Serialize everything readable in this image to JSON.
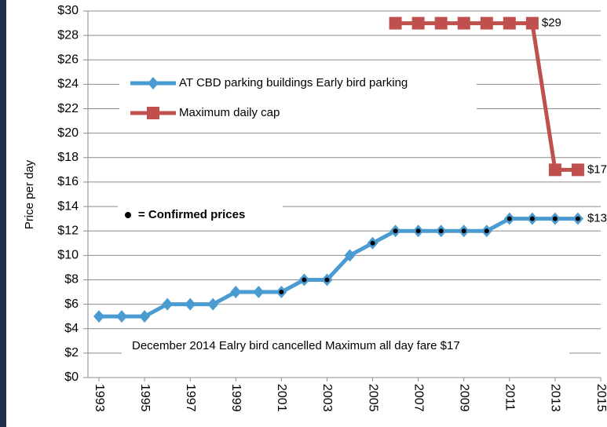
{
  "chart_data": {
    "type": "line",
    "y_label": "Price per day",
    "x": [
      1993,
      1994,
      1995,
      1996,
      1997,
      1998,
      1999,
      2000,
      2001,
      2002,
      2003,
      2004,
      2005,
      2006,
      2007,
      2008,
      2009,
      2010,
      2011,
      2012,
      2013,
      2014
    ],
    "series": [
      {
        "name": "AT CBD parking buildings Early bird parking",
        "color": "#4a9bd1",
        "marker": "diamond",
        "x": [
          1993,
          1994,
          1995,
          1996,
          1997,
          1998,
          1999,
          2000,
          2001,
          2002,
          2003,
          2004,
          2005,
          2006,
          2007,
          2008,
          2009,
          2010,
          2011,
          2012,
          2013,
          2014
        ],
        "values": [
          5,
          5,
          5,
          6,
          6,
          6,
          7,
          7,
          7,
          8,
          8,
          10,
          11,
          12,
          12,
          12,
          12,
          12,
          13,
          13,
          13,
          13
        ],
        "confirmed": [
          false,
          false,
          false,
          false,
          false,
          false,
          false,
          false,
          true,
          true,
          true,
          false,
          true,
          true,
          true,
          true,
          true,
          true,
          true,
          true,
          true,
          true
        ],
        "value_labels": [
          null,
          null,
          null,
          null,
          null,
          null,
          null,
          null,
          null,
          null,
          null,
          null,
          null,
          null,
          null,
          null,
          null,
          null,
          null,
          null,
          null,
          "$13"
        ]
      },
      {
        "name": "Maximum daily cap",
        "color": "#c0504d",
        "marker": "square",
        "x": [
          2006,
          2007,
          2008,
          2009,
          2010,
          2011,
          2012,
          2013,
          2014
        ],
        "values": [
          29,
          29,
          29,
          29,
          29,
          29,
          29,
          17,
          17
        ],
        "value_labels": [
          null,
          null,
          null,
          null,
          null,
          null,
          "$29",
          null,
          "$17"
        ]
      }
    ],
    "annotations": [
      "= Confirmed prices",
      "December 2014 Ealry bird cancelled Maximum all day fare $17"
    ],
    "xlim": [
      1993,
      2015
    ],
    "xticks": [
      1993,
      1995,
      1997,
      1999,
      2001,
      2003,
      2005,
      2007,
      2009,
      2011,
      2013,
      2015
    ],
    "ylim": [
      0,
      30
    ],
    "yticks": [
      {
        "value": 0,
        "label": "$0"
      },
      {
        "value": 2,
        "label": "$2"
      },
      {
        "value": 4,
        "label": "$4"
      },
      {
        "value": 6,
        "label": "$6"
      },
      {
        "value": 8,
        "label": "$8"
      },
      {
        "value": 10,
        "label": "$10"
      },
      {
        "value": 12,
        "label": "$12"
      },
      {
        "value": 14,
        "label": "$14"
      },
      {
        "value": 16,
        "label": "$16"
      },
      {
        "value": 18,
        "label": "$18"
      },
      {
        "value": 20,
        "label": "$20"
      },
      {
        "value": 22,
        "label": "$22"
      },
      {
        "value": 24,
        "label": "$24"
      },
      {
        "value": 26,
        "label": "$26"
      },
      {
        "value": 28,
        "label": "$28"
      },
      {
        "value": 30,
        "label": "$30"
      }
    ],
    "grid": true
  }
}
